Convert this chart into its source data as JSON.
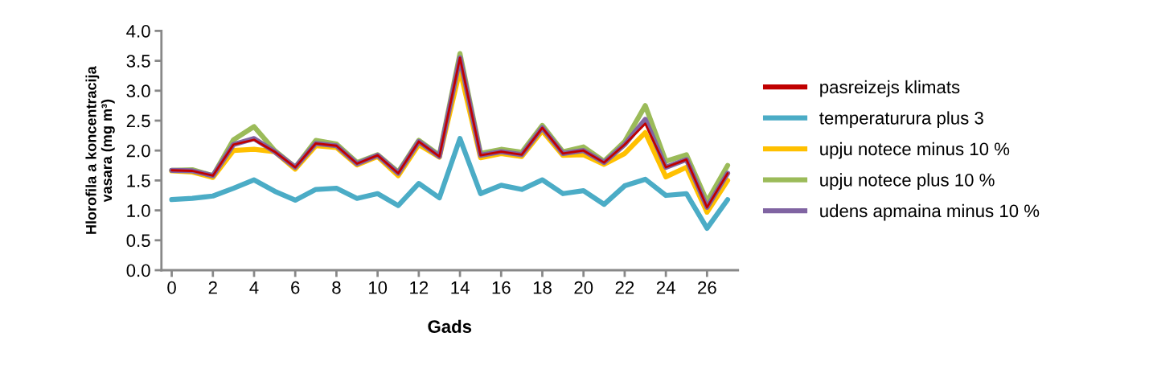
{
  "chart_data": {
    "type": "line",
    "xlabel": "Gads",
    "ylabel": "Hlorofila a koncentracija\nvasara (mg m³)",
    "x": [
      0,
      1,
      2,
      3,
      4,
      5,
      6,
      7,
      8,
      9,
      10,
      11,
      12,
      13,
      14,
      15,
      16,
      17,
      18,
      19,
      20,
      21,
      22,
      23,
      24,
      25,
      26,
      27
    ],
    "xlim": [
      -0.5,
      27.5
    ],
    "xticks": [
      0,
      2,
      4,
      6,
      8,
      10,
      12,
      14,
      16,
      18,
      20,
      22,
      24,
      26
    ],
    "ylim": [
      0,
      4
    ],
    "yticks": [
      {
        "value": 0,
        "label": "0.0"
      },
      {
        "value": 0.5,
        "label": "0.5"
      },
      {
        "value": 1,
        "label": "1.0"
      },
      {
        "value": 1.5,
        "label": "1.5"
      },
      {
        "value": 2,
        "label": "2.0"
      },
      {
        "value": 2.5,
        "label": "2.5"
      },
      {
        "value": 3,
        "label": "3.0"
      },
      {
        "value": 3.5,
        "label": "3.5"
      },
      {
        "value": 4,
        "label": "4.0"
      }
    ],
    "grid": false,
    "legend": "right",
    "marker": "none",
    "line_style": "solid",
    "series": [
      {
        "name": "pasreizejs klimats",
        "color": "#c00000",
        "values": [
          1.67,
          1.66,
          1.58,
          2.1,
          2.18,
          1.98,
          1.72,
          2.12,
          2.08,
          1.78,
          1.92,
          1.62,
          2.15,
          1.9,
          3.55,
          1.92,
          1.98,
          1.93,
          2.38,
          1.95,
          2.0,
          1.8,
          2.1,
          2.45,
          1.72,
          1.85,
          1.05,
          1.62
        ]
      },
      {
        "name": "temperaturura plus 3",
        "color": "#4bacc6",
        "values": [
          1.18,
          1.2,
          1.24,
          1.37,
          1.51,
          1.32,
          1.17,
          1.35,
          1.37,
          1.2,
          1.28,
          1.08,
          1.45,
          1.21,
          2.2,
          1.28,
          1.42,
          1.35,
          1.51,
          1.28,
          1.33,
          1.1,
          1.41,
          1.52,
          1.25,
          1.28,
          0.7,
          1.18
        ]
      },
      {
        "name": "upju notece minus 10 %",
        "color": "#ffc000",
        "values": [
          1.66,
          1.64,
          1.55,
          2.0,
          2.02,
          1.98,
          1.69,
          2.08,
          2.05,
          1.76,
          1.9,
          1.58,
          2.1,
          1.89,
          3.35,
          1.88,
          1.95,
          1.9,
          2.33,
          1.92,
          1.93,
          1.77,
          1.95,
          2.3,
          1.56,
          1.72,
          0.97,
          1.5
        ]
      },
      {
        "name": "upju notece plus 10 %",
        "color": "#9bbb59",
        "values": [
          1.67,
          1.68,
          1.58,
          2.18,
          2.4,
          2.0,
          1.72,
          2.17,
          2.11,
          1.8,
          1.93,
          1.64,
          2.17,
          1.92,
          3.62,
          1.95,
          2.02,
          1.97,
          2.42,
          1.98,
          2.06,
          1.82,
          2.15,
          2.75,
          1.82,
          1.93,
          1.15,
          1.75
        ]
      },
      {
        "name": "udens apmaina minus 10 %",
        "color": "#8064a2",
        "values": [
          1.67,
          1.66,
          1.58,
          2.1,
          2.2,
          1.98,
          1.72,
          2.12,
          2.08,
          1.78,
          1.92,
          1.62,
          2.15,
          1.9,
          3.55,
          1.92,
          1.98,
          1.93,
          2.38,
          1.95,
          2.0,
          1.8,
          2.1,
          2.52,
          1.72,
          1.85,
          1.05,
          1.62
        ]
      }
    ]
  }
}
